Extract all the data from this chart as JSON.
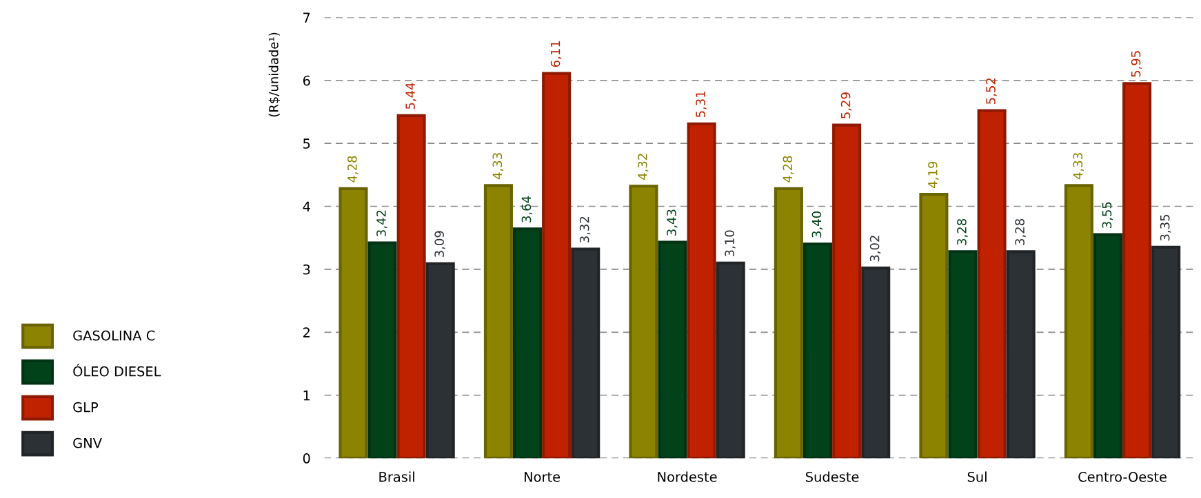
{
  "chart_data": {
    "type": "bar",
    "ylabel": "(R$/unidade¹)",
    "categories": [
      "Brasil",
      "Norte",
      "Nordeste",
      "Sudeste",
      "Sul",
      "Centro-Oeste"
    ],
    "series": [
      {
        "name": "GASOLINA C",
        "color": "#8c8400",
        "values": [
          4.28,
          4.33,
          4.32,
          4.28,
          4.19,
          4.33
        ],
        "value_labels": [
          "4,28",
          "4,33",
          "4,32",
          "4,28",
          "4,19",
          "4,33"
        ]
      },
      {
        "name": "ÓLEO DIESEL",
        "color": "#02421a",
        "values": [
          3.42,
          3.64,
          3.43,
          3.4,
          3.28,
          3.55
        ],
        "value_labels": [
          "3,42",
          "3,64",
          "3,43",
          "3,40",
          "3,28",
          "3,55"
        ]
      },
      {
        "name": "GLP",
        "color": "#c02200",
        "values": [
          5.44,
          6.11,
          5.31,
          5.29,
          5.52,
          5.95
        ],
        "value_labels": [
          "5,44",
          "6,11",
          "5,31",
          "5,29",
          "5,52",
          "5,95"
        ]
      },
      {
        "name": "GNV",
        "color": "#2c3136",
        "values": [
          3.09,
          3.32,
          3.1,
          3.02,
          3.28,
          3.35
        ],
        "value_labels": [
          "3,09",
          "3,32",
          "3,10",
          "3,02",
          "3,28",
          "3,35"
        ]
      }
    ],
    "ylim": [
      0,
      7
    ],
    "yticks": [
      0,
      1,
      2,
      3,
      4,
      5,
      6,
      7
    ],
    "grid": "y",
    "legend": "left"
  }
}
